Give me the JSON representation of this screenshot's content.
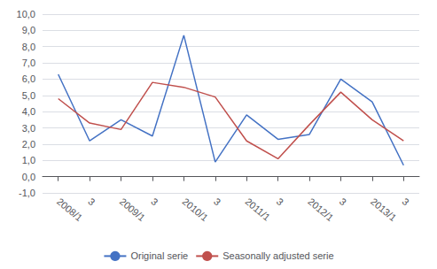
{
  "chart_data": {
    "type": "line",
    "categories": [
      "2008/1",
      "3",
      "2009/1",
      "3",
      "2010/1",
      "3",
      "2011/1",
      "3",
      "2012/1",
      "3",
      "2013/1",
      "3"
    ],
    "series": [
      {
        "name": "Original serie",
        "color": "#4472C4",
        "values": [
          6.3,
          2.2,
          3.5,
          2.5,
          8.7,
          0.9,
          3.8,
          2.3,
          2.6,
          6.0,
          4.6,
          0.7
        ]
      },
      {
        "name": "Seasonally adjusted serie",
        "color": "#C0504D",
        "values": [
          4.8,
          3.3,
          2.9,
          5.8,
          5.5,
          4.9,
          2.2,
          1.1,
          3.2,
          5.2,
          3.5,
          2.2
        ]
      }
    ],
    "ylim": [
      -1.0,
      10.0
    ],
    "yticks": [
      {
        "value": -1.0,
        "label": "-1,0"
      },
      {
        "value": 0.0,
        "label": "0,0"
      },
      {
        "value": 1.0,
        "label": "1,0"
      },
      {
        "value": 2.0,
        "label": "2,0"
      },
      {
        "value": 3.0,
        "label": "3,0"
      },
      {
        "value": 4.0,
        "label": "4,0"
      },
      {
        "value": 5.0,
        "label": "5,0"
      },
      {
        "value": 6.0,
        "label": "6,0"
      },
      {
        "value": 7.0,
        "label": "7,0"
      },
      {
        "value": 8.0,
        "label": "8,0"
      },
      {
        "value": 9.0,
        "label": "9,0"
      },
      {
        "value": 10.0,
        "label": "10,0"
      }
    ],
    "grid": true,
    "legend": "bottom"
  }
}
